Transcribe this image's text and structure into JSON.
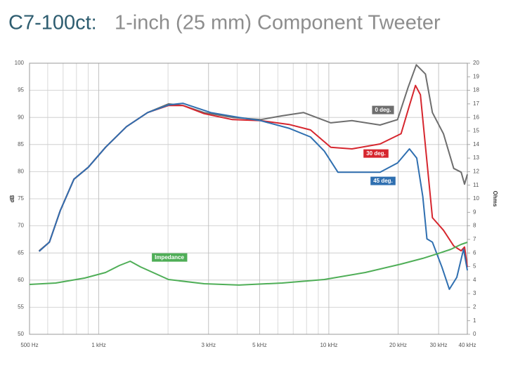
{
  "chart_data": {
    "type": "line",
    "title_model": "C7-100ct:",
    "title": "1-inch (25 mm) Component Tweeter",
    "ylabel": "dB",
    "y2label": "Ohms",
    "xscale": "log",
    "grid": true,
    "xlim": [
      500,
      40000
    ],
    "xticks": [
      {
        "value": 500,
        "label": "500 Hz"
      },
      {
        "value": 1000,
        "label": "1  kHz"
      },
      {
        "value": 3000,
        "label": "3 kHz"
      },
      {
        "value": 5000,
        "label": "5 kHz"
      },
      {
        "value": 10000,
        "label": "10 kHz"
      },
      {
        "value": 20000,
        "label": "20 kHz"
      },
      {
        "value": 30000,
        "label": "30 kHz"
      },
      {
        "value": 40000,
        "label": "40 kHz"
      }
    ],
    "xminor_ticks": [
      600,
      700,
      800,
      900,
      2000,
      4000,
      6000,
      7000,
      8000,
      9000
    ],
    "ylim": [
      50,
      100
    ],
    "yticks": [
      50,
      55,
      60,
      65,
      70,
      75,
      80,
      85,
      90,
      95,
      100
    ],
    "y2lim": [
      0,
      20
    ],
    "y2ticks": [
      0,
      1,
      2,
      3,
      4,
      5,
      6,
      7,
      8,
      9,
      10,
      11,
      12,
      13,
      14,
      15,
      16,
      17,
      18,
      19,
      20
    ],
    "series": [
      {
        "name": "0 deg.",
        "color": "#6e6e6e",
        "x": [
          550,
          610,
          680,
          780,
          900,
          1070,
          1320,
          1630,
          2010,
          2320,
          2870,
          3810,
          5050,
          6270,
          7770,
          10200,
          12600,
          16700,
          19900,
          22100,
          24000,
          26300,
          28200,
          31500,
          34900,
          37600,
          38900,
          40000
        ],
        "values": [
          65.4,
          67,
          72.8,
          78.6,
          80.8,
          84.5,
          88.3,
          90.9,
          92.5,
          92.2,
          90.9,
          90,
          89.6,
          90.3,
          90.9,
          89,
          89.4,
          88.6,
          89.6,
          95.5,
          99.7,
          98,
          90.9,
          87,
          80.6,
          79.9,
          77.7,
          79.5
        ]
      },
      {
        "name": "30 deg.",
        "color": "#d6262e",
        "x": [
          550,
          610,
          680,
          780,
          900,
          1070,
          1320,
          1630,
          2010,
          2320,
          2870,
          3810,
          5050,
          6710,
          8320,
          10200,
          12600,
          16700,
          20600,
          22400,
          23800,
          25000,
          26500,
          28200,
          31500,
          34900,
          37600,
          38900,
          40000
        ],
        "values": [
          65.3,
          67,
          72.8,
          78.6,
          80.8,
          84.5,
          88.3,
          90.9,
          92.2,
          92.2,
          90.7,
          89.6,
          89.4,
          88.7,
          87.7,
          84.5,
          84.2,
          85.1,
          87,
          92.2,
          95.9,
          94.2,
          83.2,
          71.5,
          69.2,
          66.3,
          65.4,
          66.1,
          62.4
        ]
      },
      {
        "name": "45 deg.",
        "color": "#2f6fb0",
        "x": [
          550,
          610,
          680,
          780,
          900,
          1070,
          1320,
          1630,
          2010,
          2320,
          3070,
          4070,
          5050,
          6710,
          8320,
          9550,
          10950,
          12600,
          16700,
          19900,
          22400,
          24100,
          25600,
          26700,
          28200,
          31000,
          33400,
          36000,
          38500,
          40000
        ],
        "values": [
          65.3,
          67,
          72.8,
          78.6,
          80.8,
          84.5,
          88.3,
          90.9,
          92.3,
          92.6,
          90.9,
          90,
          89.4,
          88,
          86.4,
          83.8,
          79.9,
          79.9,
          79.9,
          81.6,
          84.2,
          82.5,
          75.4,
          67.6,
          67,
          62.4,
          58.3,
          60.5,
          65.7,
          61.8
        ]
      },
      {
        "name": "Impedance",
        "color": "#4fae57",
        "axis": "y2",
        "x": [
          500,
          650,
          870,
          1070,
          1230,
          1370,
          1520,
          2010,
          2870,
          4070,
          6270,
          9550,
          14400,
          20600,
          25600,
          30400,
          33900,
          37600,
          40000
        ],
        "values": [
          3.68,
          3.78,
          4.15,
          4.56,
          5.08,
          5.39,
          4.97,
          4.04,
          3.73,
          3.63,
          3.78,
          4.04,
          4.56,
          5.18,
          5.6,
          6.0,
          6.27,
          6.63,
          6.79
        ]
      }
    ]
  }
}
